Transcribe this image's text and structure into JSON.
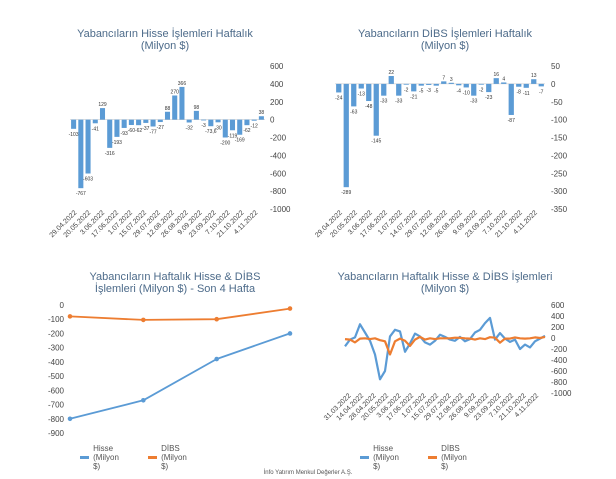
{
  "colors": {
    "blue": "#5b9bd5",
    "orange": "#ed7d31",
    "title": "#4d6b8a",
    "axis": "#444444"
  },
  "footer": "İnfo Yatırım Menkul Değerler A.Ş.",
  "chart_data": [
    {
      "id": "c1",
      "type": "bar",
      "title": [
        "Yabancıların Hisse İşlemleri Haftalık",
        "(Milyon $)"
      ],
      "ylim": [
        -1000,
        600
      ],
      "yticks": [
        600,
        400,
        200,
        0,
        -200,
        -400,
        -600,
        -800,
        -1000
      ],
      "date_labels": [
        "29.04.2022",
        "20.05.2022",
        "3.06.2022",
        "17.06.2022",
        "1.07.2022",
        "15.07.2022",
        "29.07.2022",
        "12.08.2022",
        "26.08.2022",
        "9.09.2022",
        "23.09.2022",
        "7.10.2022",
        "21.10.2022",
        "4.11.2022"
      ],
      "values": [
        -103,
        -767,
        -603,
        -41,
        129,
        -316,
        -193,
        -93,
        -60,
        -62,
        -37,
        -77,
        -27,
        88,
        270,
        366,
        -32,
        98,
        -3,
        -73.6,
        -30,
        -200,
        -119,
        -169,
        -62,
        -12,
        38
      ],
      "data_labels": [
        "-103",
        "-767",
        "-603",
        "-41",
        "129",
        "-316",
        "-193",
        "-93",
        "-60",
        "-62",
        "-37",
        "-77",
        "-27",
        "88",
        "270",
        "366",
        "-32",
        "98",
        "-3",
        "-73,6",
        "-30",
        "-200",
        "-119",
        "-169",
        "-62",
        "-12",
        "38"
      ]
    },
    {
      "id": "c2",
      "type": "bar",
      "title": [
        "Yabancıların  DİBS İşlemleri Haftalık",
        "(Milyon $)"
      ],
      "ylim": [
        -350,
        50
      ],
      "yticks": [
        50,
        0,
        -50,
        -100,
        -150,
        -200,
        -250,
        -300,
        -350
      ],
      "date_labels": [
        "29.04.2022",
        "20.05.2022",
        "3.06.2022",
        "17.06.2022",
        "1.07.2022",
        "14.07.2022",
        "29.07.2022",
        "12.08.2022",
        "26.08.2022",
        "9.09.2022",
        "23.09.2022",
        "7.10.2022",
        "21.10.2022",
        "4.11.2022"
      ],
      "values": [
        -24,
        -289,
        -63,
        -13,
        -48,
        -145,
        -33,
        22,
        -33,
        -2,
        -21,
        -5,
        -3,
        -5,
        7,
        3,
        -4,
        -10,
        -33,
        -2,
        -23,
        16,
        4,
        -87,
        -8,
        -11,
        13,
        -7
      ],
      "data_labels": [
        "-24",
        "-289",
        "-63",
        "-13",
        "-48",
        "-145",
        "-33",
        "22",
        "-33",
        "-2",
        "-21",
        "-5",
        "-3",
        "-5",
        "7",
        "3",
        "-4",
        "-10",
        "-33",
        "-2",
        "-23",
        "16",
        "4",
        "-87",
        "-8",
        "-11",
        "13",
        "-7"
      ]
    },
    {
      "id": "c3",
      "type": "line",
      "title": [
        "Yabancıların  Haftalık Hisse & DİBS",
        "İşlemleri (Milyon $) - Son 4 Hafta"
      ],
      "ylim": [
        -900,
        0
      ],
      "yticks": [
        0,
        -100,
        -200,
        -300,
        -400,
        -500,
        -600,
        -700,
        -800,
        -900
      ],
      "x": [
        1,
        2,
        3,
        4
      ],
      "series": [
        {
          "name": "Hisse (Milyon $)",
          "values": [
            -800,
            -670,
            -380,
            -200
          ]
        },
        {
          "name": "DİBS (Milyon $)",
          "values": [
            -80,
            -105,
            -100,
            -25
          ]
        }
      ]
    },
    {
      "id": "c4",
      "type": "line",
      "title": [
        "Yabancıların Haftalık Hisse & DİBS İşlemleri",
        "(Milyon $)"
      ],
      "ylim": [
        -1000,
        600
      ],
      "yticks": [
        600,
        400,
        200,
        0,
        -200,
        -400,
        -600,
        -800,
        -1000
      ],
      "date_labels": [
        "31.03.2022",
        "14.04.2022",
        "28.04.2022",
        "20.05.2022",
        "3.06.2022",
        "17.06.2022",
        "1.07.2022",
        "15.07.2022",
        "29.07.2022",
        "12.08.2022",
        "26.08.2022",
        "9.09.2022",
        "23.09.2022",
        "7.10.2022",
        "21.10.2022",
        "4.11.2022"
      ],
      "series": [
        {
          "name": "Hisse (Milyon $)",
          "values": [
            -150,
            -30,
            10,
            250,
            100,
            -50,
            -300,
            -750,
            -600,
            30,
            150,
            120,
            -250,
            -100,
            80,
            30,
            -80,
            -120,
            -50,
            60,
            20,
            -30,
            -50,
            20,
            -60,
            -20,
            100,
            150,
            270,
            366,
            -30,
            90,
            -10,
            -70,
            -30,
            -200,
            -120,
            -170,
            -60,
            -10,
            40
          ]
        },
        {
          "name": "DİBS (Milyon $)",
          "values": [
            -20,
            -30,
            -80,
            -10,
            -5,
            -20,
            -5,
            -40,
            -60,
            -300,
            -60,
            -10,
            -50,
            -145,
            -30,
            20,
            -30,
            -5,
            -20,
            -5,
            -5,
            -5,
            5,
            3,
            -5,
            -10,
            -30,
            -5,
            -20,
            15,
            5,
            -85,
            -10,
            -10,
            10,
            -5,
            -10,
            -5,
            10,
            0,
            20
          ]
        }
      ]
    }
  ]
}
